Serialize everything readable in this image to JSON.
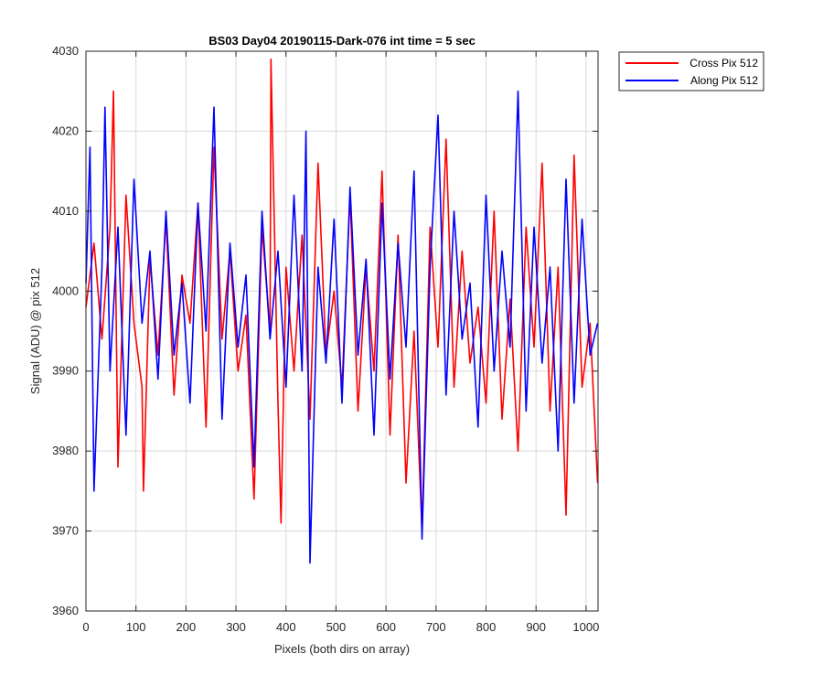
{
  "chart_data": {
    "type": "line",
    "title": "BS03 Day04 20190115-Dark-076 int time = 5 sec",
    "xlabel": "Pixels (both dirs on array)",
    "ylabel": "Signal (ADU) @ pix 512",
    "xlim": [
      0,
      1024
    ],
    "ylim": [
      3960,
      4030
    ],
    "xticks": [
      0,
      100,
      200,
      300,
      400,
      500,
      600,
      700,
      800,
      900,
      1000
    ],
    "yticks": [
      3960,
      3970,
      3980,
      3990,
      4000,
      4010,
      4020,
      4030
    ],
    "grid": true,
    "legend_position": "outside-top-right",
    "series": [
      {
        "name": "Cross Pix 512",
        "color": "#ff0000",
        "x": [
          0,
          16,
          32,
          48,
          55,
          64,
          80,
          96,
          112,
          115,
          128,
          144,
          160,
          176,
          192,
          208,
          224,
          240,
          256,
          272,
          288,
          304,
          320,
          336,
          352,
          368,
          370,
          384,
          390,
          400,
          416,
          432,
          448,
          464,
          480,
          496,
          512,
          528,
          544,
          560,
          576,
          592,
          608,
          624,
          640,
          656,
          672,
          688,
          704,
          720,
          736,
          752,
          768,
          784,
          800,
          816,
          832,
          848,
          864,
          880,
          896,
          912,
          928,
          944,
          960,
          976,
          992,
          1008,
          1023
        ],
        "y": [
          3998,
          4006,
          3994,
          4008,
          4025,
          3978,
          4012,
          3996,
          3988,
          3975,
          4004,
          3992,
          4009,
          3987,
          4002,
          3996,
          4011,
          3983,
          4018,
          3994,
          4005,
          3990,
          3997,
          3974,
          4008,
          3995,
          4029,
          3986,
          3971,
          4003,
          3990,
          4007,
          3984,
          4016,
          3992,
          4000,
          3988,
          4012,
          3985,
          4003,
          3990,
          4015,
          3982,
          4007,
          3976,
          3995,
          3970,
          4008,
          3993,
          4019,
          3988,
          4005,
          3991,
          3998,
          3986,
          4010,
          3984,
          3999,
          3980,
          4008,
          3993,
          4016,
          3985,
          4003,
          3972,
          4017,
          3988,
          3996,
          3976
        ]
      },
      {
        "name": "Along Pix 512",
        "color": "#0000ff",
        "x": [
          0,
          8,
          16,
          32,
          38,
          48,
          64,
          80,
          96,
          112,
          128,
          144,
          160,
          176,
          192,
          208,
          224,
          240,
          256,
          272,
          288,
          304,
          320,
          336,
          352,
          368,
          384,
          400,
          416,
          432,
          440,
          448,
          464,
          480,
          496,
          512,
          528,
          544,
          560,
          576,
          592,
          608,
          624,
          640,
          656,
          672,
          688,
          704,
          720,
          736,
          752,
          768,
          784,
          800,
          816,
          832,
          848,
          864,
          880,
          896,
          912,
          928,
          944,
          960,
          976,
          992,
          1008,
          1023
        ],
        "y": [
          4001,
          4018,
          3975,
          4003,
          4023,
          3990,
          4008,
          3982,
          4014,
          3996,
          4005,
          3989,
          4010,
          3992,
          4001,
          3986,
          4011,
          3995,
          4023,
          3984,
          4006,
          3993,
          4002,
          3978,
          4010,
          3994,
          4005,
          3988,
          4012,
          3990,
          4020,
          3966,
          4003,
          3991,
          4009,
          3986,
          4013,
          3992,
          4004,
          3982,
          4011,
          3989,
          4006,
          3993,
          4015,
          3969,
          4003,
          4022,
          3987,
          4010,
          3994,
          4001,
          3983,
          4012,
          3990,
          4005,
          3993,
          4025,
          3985,
          4008,
          3991,
          4003,
          3980,
          4014,
          3986,
          4009,
          3992,
          3996
        ]
      }
    ]
  }
}
